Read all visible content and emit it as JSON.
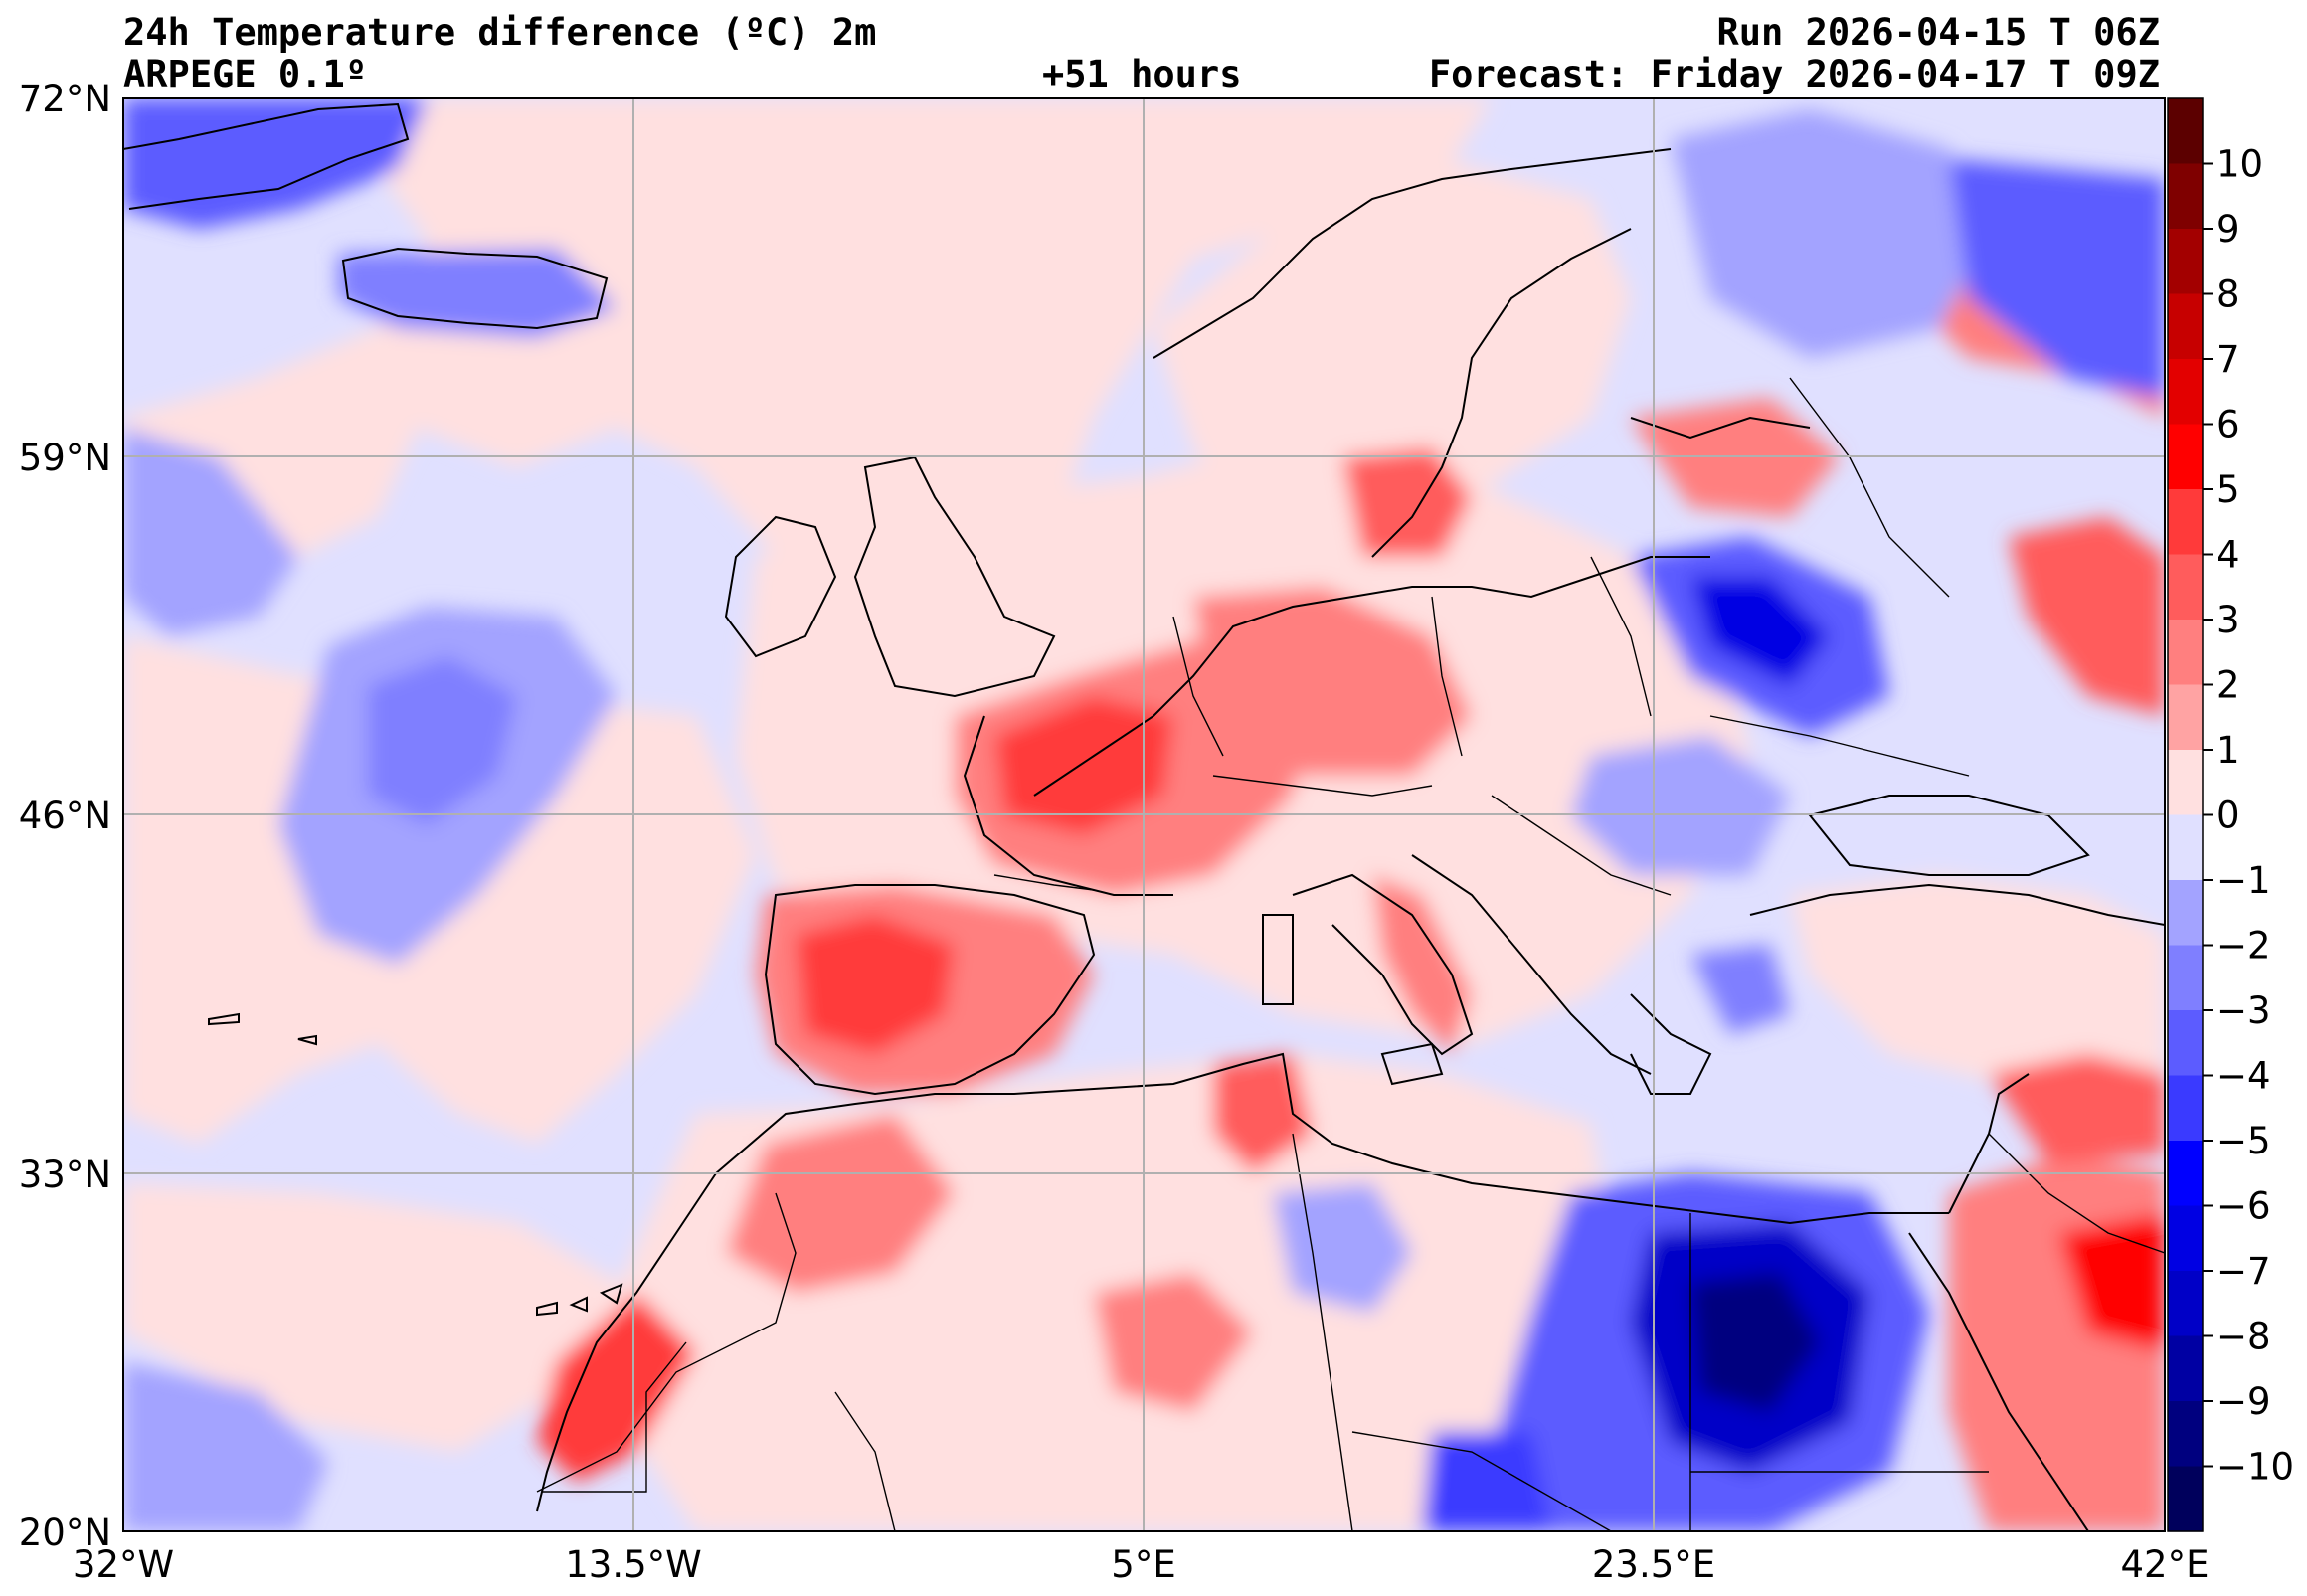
{
  "header": {
    "title": "24h Temperature difference (ºC) 2m",
    "model": "ARPEGE 0.1º",
    "lead_time": "+51 hours",
    "run": "Run 2026-04-15 T 06Z",
    "forecast": "Forecast: Friday 2026-04-17 T 09Z"
  },
  "axes": {
    "lat_labels": [
      "72°N",
      "59°N",
      "46°N",
      "33°N",
      "20°N"
    ],
    "lon_labels": [
      "32°W",
      "13.5°W",
      "5°E",
      "23.5°E",
      "42°E"
    ]
  },
  "colorbar": {
    "ticks": [
      "10",
      "9",
      "8",
      "7",
      "6",
      "5",
      "4",
      "3",
      "2",
      "1",
      "0",
      "−1",
      "−2",
      "−3",
      "−4",
      "−5",
      "−6",
      "−7",
      "−8",
      "−9",
      "−10"
    ],
    "colors": [
      "#5c0000",
      "#7f0000",
      "#a30000",
      "#c70000",
      "#e30000",
      "#ff0000",
      "#ff3a3a",
      "#ff5c5c",
      "#ff7f7f",
      "#ffa3a3",
      "#ffe0e0",
      "#e0e0ff",
      "#a3a3ff",
      "#7f7fff",
      "#5c5cff",
      "#3a3aff",
      "#0000ff",
      "#0000e3",
      "#0000c7",
      "#0000a3",
      "#00007f",
      "#00005c"
    ]
  },
  "colors": {
    "ocean_base": "#e0e0ff",
    "warm_light": "#ffe0e0",
    "warm_mid": "#ff7f7f",
    "warm_strong": "#ff0000",
    "warm_dark": "#c70000",
    "cool_light": "#a3a3ff",
    "cool_mid": "#5c5cff",
    "cool_strong": "#0000c7",
    "cool_dark": "#00007f"
  }
}
